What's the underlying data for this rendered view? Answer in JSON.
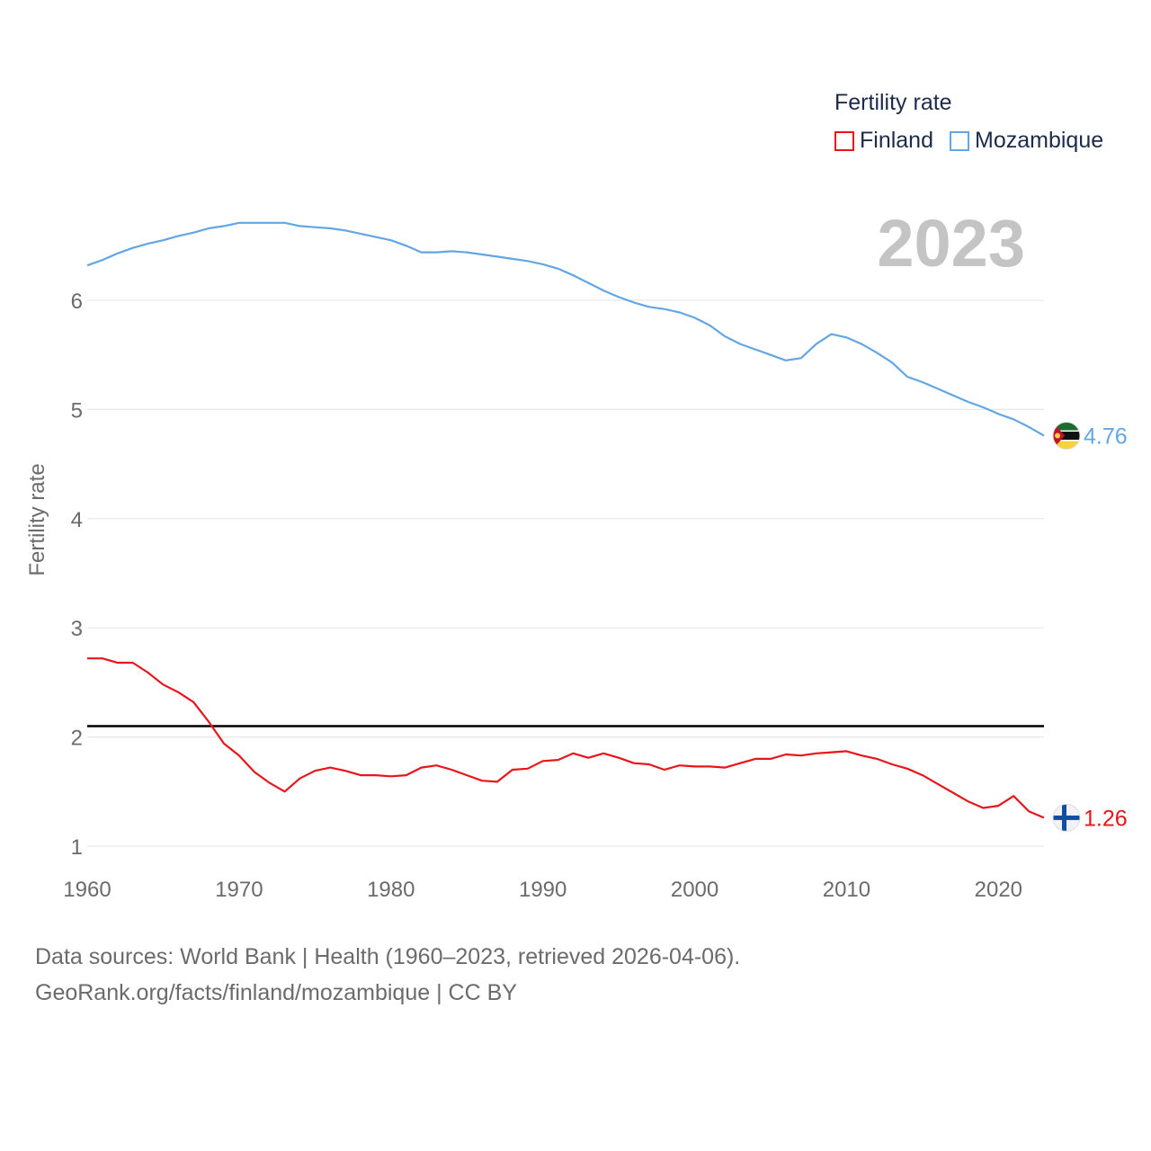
{
  "legend": {
    "title": "Fertility rate",
    "items": [
      {
        "name": "Finland",
        "color": "#e8151a"
      },
      {
        "name": "Mozambique",
        "color": "#62a6e6"
      }
    ]
  },
  "year_label": "2023",
  "footer": {
    "line1": "Data sources: World Bank | Health (1960–2023, retrieved 2026-04-06).",
    "line2": "GeoRank.org/facts/finland/mozambique | CC BY"
  },
  "chart_data": {
    "type": "line",
    "title": "Fertility rate",
    "xlabel": "",
    "ylabel": "Fertility rate",
    "xlim": [
      1960,
      2023
    ],
    "ylim": [
      1,
      7
    ],
    "xticks": [
      1960,
      1970,
      1980,
      1990,
      2000,
      2010,
      2020
    ],
    "yticks": [
      1,
      2,
      3,
      4,
      5,
      6
    ],
    "grid": true,
    "reference_line": {
      "y": 2.1,
      "color": "#000000"
    },
    "x": [
      1960,
      1961,
      1962,
      1963,
      1964,
      1965,
      1966,
      1967,
      1968,
      1969,
      1970,
      1971,
      1972,
      1973,
      1974,
      1975,
      1976,
      1977,
      1978,
      1979,
      1980,
      1981,
      1982,
      1983,
      1984,
      1985,
      1986,
      1987,
      1988,
      1989,
      1990,
      1991,
      1992,
      1993,
      1994,
      1995,
      1996,
      1997,
      1998,
      1999,
      2000,
      2001,
      2002,
      2003,
      2004,
      2005,
      2006,
      2007,
      2008,
      2009,
      2010,
      2011,
      2012,
      2013,
      2014,
      2015,
      2016,
      2017,
      2018,
      2019,
      2020,
      2021,
      2022,
      2023
    ],
    "series": [
      {
        "name": "Finland",
        "color": "#e8151a",
        "end_label": "1.26",
        "flag": "finland",
        "values": [
          2.72,
          2.72,
          2.68,
          2.68,
          2.59,
          2.48,
          2.41,
          2.32,
          2.14,
          1.94,
          1.83,
          1.68,
          1.58,
          1.5,
          1.62,
          1.69,
          1.72,
          1.69,
          1.65,
          1.65,
          1.64,
          1.65,
          1.72,
          1.74,
          1.7,
          1.65,
          1.6,
          1.59,
          1.7,
          1.71,
          1.78,
          1.79,
          1.85,
          1.81,
          1.85,
          1.81,
          1.76,
          1.75,
          1.7,
          1.74,
          1.73,
          1.73,
          1.72,
          1.76,
          1.8,
          1.8,
          1.84,
          1.83,
          1.85,
          1.86,
          1.87,
          1.83,
          1.8,
          1.75,
          1.71,
          1.65,
          1.57,
          1.49,
          1.41,
          1.35,
          1.37,
          1.46,
          1.32,
          1.26
        ]
      },
      {
        "name": "Mozambique",
        "color": "#62a6e6",
        "end_label": "4.76",
        "flag": "mozambique",
        "values": [
          6.32,
          6.37,
          6.43,
          6.48,
          6.52,
          6.55,
          6.59,
          6.62,
          6.66,
          6.68,
          6.71,
          6.71,
          6.71,
          6.71,
          6.68,
          6.67,
          6.66,
          6.64,
          6.61,
          6.58,
          6.55,
          6.5,
          6.44,
          6.44,
          6.45,
          6.44,
          6.42,
          6.4,
          6.38,
          6.36,
          6.33,
          6.29,
          6.23,
          6.16,
          6.09,
          6.03,
          5.98,
          5.94,
          5.92,
          5.89,
          5.84,
          5.77,
          5.67,
          5.6,
          5.55,
          5.5,
          5.45,
          5.47,
          5.6,
          5.69,
          5.66,
          5.6,
          5.52,
          5.43,
          5.3,
          5.25,
          5.19,
          5.13,
          5.07,
          5.02,
          4.96,
          4.91,
          4.84,
          4.76
        ]
      }
    ]
  }
}
